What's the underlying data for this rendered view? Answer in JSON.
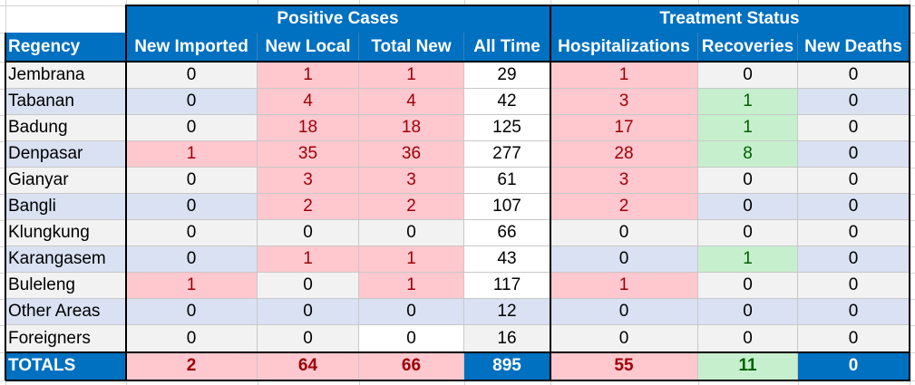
{
  "groups": [
    {
      "label": "Positive Cases",
      "span": [
        1,
        4
      ]
    },
    {
      "label": "Treatment Status",
      "span": [
        5,
        7
      ]
    }
  ],
  "columns": [
    "Regency",
    "New Imported",
    "New Local",
    "Total New",
    "All Time",
    "Hospitalizations",
    "Recoveries",
    "New Deaths"
  ],
  "rows": [
    {
      "name": "Jembrana",
      "values": [
        "0",
        "1",
        "1",
        "29",
        "1",
        "0",
        "0"
      ]
    },
    {
      "name": "Tabanan",
      "values": [
        "0",
        "4",
        "4",
        "42",
        "3",
        "1",
        "0"
      ]
    },
    {
      "name": "Badung",
      "values": [
        "0",
        "18",
        "18",
        "125",
        "17",
        "1",
        "0"
      ]
    },
    {
      "name": "Denpasar",
      "values": [
        "1",
        "35",
        "36",
        "277",
        "28",
        "8",
        "0"
      ]
    },
    {
      "name": "Gianyar",
      "values": [
        "0",
        "3",
        "3",
        "61",
        "3",
        "0",
        "0"
      ]
    },
    {
      "name": "Bangli",
      "values": [
        "0",
        "2",
        "2",
        "107",
        "2",
        "0",
        "0"
      ]
    },
    {
      "name": "Klungkung",
      "values": [
        "0",
        "0",
        "0",
        "66",
        "0",
        "0",
        "0"
      ]
    },
    {
      "name": "Karangasem",
      "values": [
        "0",
        "1",
        "1",
        "43",
        "0",
        "1",
        "0"
      ]
    },
    {
      "name": "Buleleng",
      "values": [
        "1",
        "0",
        "1",
        "117",
        "1",
        "0",
        "0"
      ]
    },
    {
      "name": "Other Areas",
      "values": [
        "0",
        "0",
        "0",
        "12",
        "0",
        "0",
        "0"
      ]
    },
    {
      "name": "Foreigners",
      "values": [
        "0",
        "0",
        "0",
        "16",
        "0",
        "0",
        "0"
      ]
    }
  ],
  "totals": {
    "name": "TOTALS",
    "values": [
      "2",
      "64",
      "66",
      "895",
      "55",
      "11",
      "0"
    ]
  },
  "colors": {
    "header_blue": "#0070c0",
    "highlight_pink": "#ffc7ce",
    "pink_text": "#9c0006",
    "highlight_green": "#c6efce",
    "green_text": "#006100",
    "alt_row": "#d9e1f2",
    "plain_row": "#f2f2f2"
  }
}
